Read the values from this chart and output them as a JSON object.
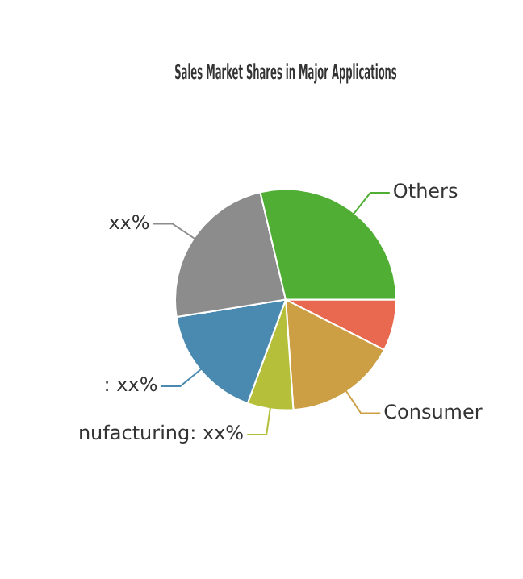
{
  "chart_data": {
    "type": "pie",
    "title": "Sales Market Shares in Major Applications",
    "categories": [
      null,
      "Consumer",
      "nufacturing: xx%",
      ": xx%",
      "xx%",
      "Others"
    ],
    "values": [
      7.5,
      16.4,
      6.7,
      16.9,
      23.8,
      28.7
    ],
    "colors": [
      "#e8694f",
      "#cc9f45",
      "#b5bf3a",
      "#4a89b0",
      "#8c8c8c",
      "#50ae34"
    ],
    "legend": false
  }
}
